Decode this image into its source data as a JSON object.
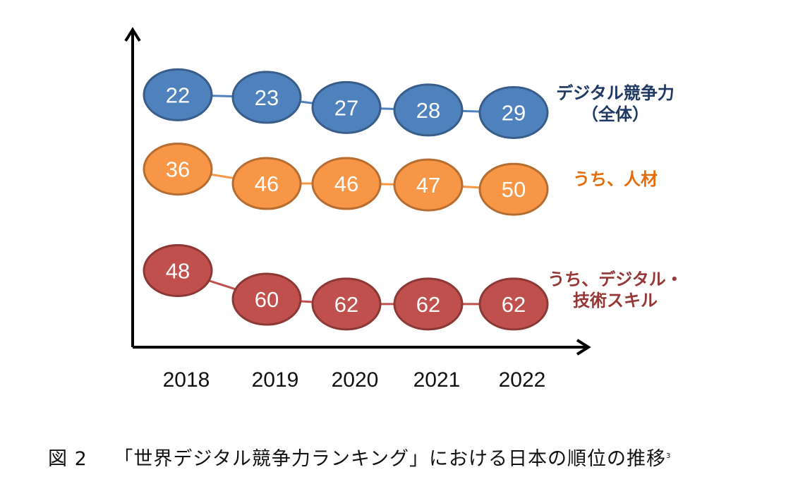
{
  "chart_data": {
    "type": "line",
    "categories": [
      "2018",
      "2019",
      "2020",
      "2021",
      "2022"
    ],
    "series": [
      {
        "name": "デジタル競争力\n（全体）",
        "values": [
          22,
          23,
          27,
          28,
          29
        ],
        "color": "#4f81bd",
        "stroke": "#385d8a",
        "text_color": "#1f3864"
      },
      {
        "name": "うち、人材",
        "values": [
          36,
          46,
          46,
          47,
          50
        ],
        "color": "#f79646",
        "stroke": "#b66d31",
        "text_color": "#e46c0a"
      },
      {
        "name": "うち、デジタル・\n技術スキル",
        "values": [
          48,
          60,
          62,
          62,
          62
        ],
        "color": "#c0504d",
        "stroke": "#8c3836",
        "text_color": "#953735"
      }
    ],
    "y_direction": "rank (lower is better, plotted upward)",
    "grid": false,
    "legend": "right, labels at end of each series"
  },
  "caption": {
    "figure": "図 2",
    "text": "「世界デジタル競争力ランキング」における日本の順位の推移",
    "footnote": "3"
  }
}
